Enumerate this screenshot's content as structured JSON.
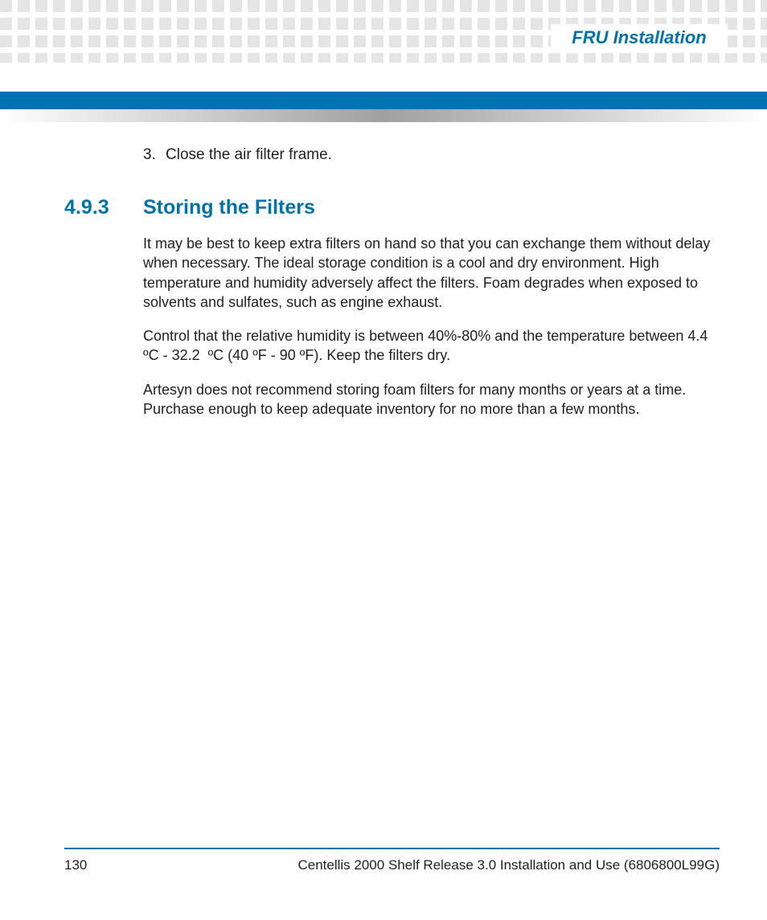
{
  "colors": {
    "accent": "#0073ae",
    "pattern_square": "#e5e5e5",
    "text": "#231f20",
    "gradient_mid": "#a0a0a0"
  },
  "header": {
    "title": "FRU Installation"
  },
  "content": {
    "list_item_number": "3.",
    "list_item_text": "Close the air filter frame.",
    "section_number": "4.9.3",
    "section_title": "Storing the Filters",
    "para1": "It may be best to keep extra filters on hand so that you can exchange them without delay when necessary. The ideal storage condition is a cool and dry environment. High temperature and humidity adversely affect the filters. Foam degrades when exposed to solvents and sulfates, such as engine exhaust.",
    "para2": "Control that the relative humidity is between 40%-80% and the temperature between 4.4  ºC - 32.2  ºC (40 ºF - 90 ºF). Keep the filters dry.",
    "para3": "Artesyn does not recommend storing foam filters for many months or years at a time. Purchase enough to keep adequate inventory for no more than a few months."
  },
  "footer": {
    "page_number": "130",
    "doc_title": "Centellis 2000 Shelf Release 3.0 Installation and Use (6806800L99G)"
  }
}
